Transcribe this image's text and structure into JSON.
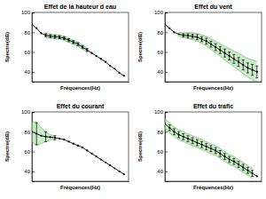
{
  "chart_data": [
    {
      "type": "line",
      "title": "Effet de la hauteur d eau",
      "x_label": "Fréquences(Hz)",
      "y_label": "Spectre(dB)",
      "tick_labels": "y",
      "color": "#000000",
      "marker": "circle",
      "xlim": [
        0,
        21
      ],
      "ylim": [
        30,
        100
      ],
      "yticks": [
        40,
        60,
        80,
        100
      ],
      "x": [
        0,
        1,
        2,
        3,
        4,
        5,
        6,
        7,
        8,
        9,
        10,
        11,
        12,
        13,
        14,
        15,
        16,
        17,
        18,
        19,
        20
      ],
      "values": [
        88,
        84,
        79,
        77,
        76,
        75.5,
        75,
        74,
        72,
        70,
        68,
        65,
        62,
        59,
        56,
        53,
        50,
        46,
        43,
        39,
        36
      ],
      "band_upper": [
        null,
        null,
        null,
        79,
        78,
        77.5,
        77,
        76,
        74,
        72,
        70,
        67,
        64,
        null,
        null,
        null,
        null,
        null,
        null,
        null,
        null
      ],
      "band_lower": [
        null,
        null,
        null,
        75,
        74,
        73.5,
        73,
        72,
        70,
        68,
        66,
        63,
        60,
        null,
        null,
        null,
        null,
        null,
        null,
        null,
        null
      ],
      "errors": [
        null,
        null,
        null,
        1.5,
        1.5,
        1.5,
        1.5,
        1.5,
        1.5,
        1.5,
        1.5,
        1.5,
        1.5,
        null,
        null,
        null,
        null,
        null,
        null,
        null,
        null
      ]
    },
    {
      "type": "line",
      "title": "Effet du vent",
      "x_label": "Fréquences(Hz)",
      "y_label": "Spectre(dB)",
      "tick_labels": "y",
      "color": "#000000",
      "marker": "circle",
      "xlim": [
        0,
        21
      ],
      "ylim": [
        30,
        100
      ],
      "yticks": [
        40,
        60,
        80,
        100
      ],
      "x": [
        0,
        1,
        2,
        3,
        4,
        5,
        6,
        7,
        8,
        9,
        10,
        11,
        12,
        13,
        14,
        15,
        16,
        17,
        18,
        19,
        20
      ],
      "values": [
        88,
        84,
        80,
        78,
        77,
        76.5,
        76,
        75,
        73,
        71,
        68,
        65,
        62,
        59,
        56,
        53,
        50,
        47,
        44,
        42,
        40
      ],
      "band_upper": [
        null,
        null,
        null,
        80,
        79.5,
        79.5,
        79.5,
        79,
        77.5,
        76,
        73.5,
        71,
        68.5,
        66,
        63.5,
        61,
        58.5,
        56,
        53.5,
        52,
        50.5
      ],
      "band_lower": [
        null,
        null,
        null,
        76,
        74.5,
        73.5,
        72.5,
        71,
        68.5,
        66,
        62.5,
        59,
        55.5,
        52,
        48.5,
        45,
        41.5,
        38,
        34.5,
        32,
        29.5
      ],
      "errors": [
        null,
        null,
        null,
        null,
        1.5,
        2,
        2,
        2.5,
        2.5,
        3,
        3,
        3.5,
        3.5,
        4,
        4,
        4.5,
        4.5,
        5,
        5,
        5.5,
        6
      ]
    },
    {
      "type": "line",
      "title": "Effet du courant",
      "x_label": "Fréquences(Hz)",
      "y_label": "Spectre(dB)",
      "tick_labels": "y",
      "color": "#000000",
      "marker": "circle",
      "xlim": [
        0,
        21
      ],
      "ylim": [
        30,
        100
      ],
      "yticks": [
        40,
        60,
        80,
        100
      ],
      "x": [
        0,
        1,
        2,
        3,
        4,
        5,
        6,
        7,
        8,
        9,
        10,
        11,
        12,
        13,
        14,
        15,
        16,
        17,
        18,
        19,
        20
      ],
      "values": [
        80,
        78,
        76,
        75,
        74.5,
        74,
        73,
        72,
        70,
        68,
        66,
        64,
        61,
        58,
        55,
        52,
        49,
        46,
        43,
        40,
        37
      ],
      "band_upper": [
        90,
        90,
        84,
        80,
        77,
        76,
        null,
        null,
        null,
        null,
        null,
        null,
        null,
        null,
        null,
        null,
        null,
        null,
        null,
        null,
        null
      ],
      "band_lower": [
        70,
        66,
        68,
        70,
        72,
        72,
        null,
        null,
        null,
        null,
        null,
        null,
        null,
        null,
        null,
        null,
        null,
        null,
        null,
        null,
        null
      ],
      "errors": [
        null,
        11,
        null,
        5,
        null,
        2,
        null,
        null,
        null,
        null,
        null,
        null,
        null,
        null,
        null,
        null,
        null,
        null,
        null,
        null,
        null
      ]
    },
    {
      "type": "line",
      "title": "Effet du trafic",
      "x_label": "Fréquences(Hz)",
      "y_label": "Spectre(dB)",
      "tick_labels": "y",
      "color": "#000000",
      "marker": "circle",
      "xlim": [
        0,
        21
      ],
      "ylim": [
        30,
        100
      ],
      "yticks": [
        40,
        60,
        80,
        100
      ],
      "x": [
        0,
        1,
        2,
        3,
        4,
        5,
        6,
        7,
        8,
        9,
        10,
        11,
        12,
        13,
        14,
        15,
        16,
        17,
        18,
        19,
        20
      ],
      "values": [
        88,
        84,
        80,
        77,
        75,
        73,
        71,
        69,
        67,
        65,
        63,
        61,
        58,
        55,
        52,
        50,
        47,
        44,
        41,
        38,
        35
      ],
      "band_upper": [
        93,
        89,
        85,
        82,
        80,
        78,
        76,
        74,
        72,
        70,
        68,
        66,
        63,
        60,
        57,
        55,
        52,
        49,
        46,
        43,
        null
      ],
      "band_lower": [
        83,
        79,
        75,
        72,
        70,
        68,
        66,
        64,
        62,
        60,
        58,
        56,
        53,
        50,
        47,
        45,
        42,
        39,
        36,
        33,
        null
      ],
      "errors": [
        null,
        3,
        3,
        3,
        3,
        3,
        3,
        3,
        3,
        3,
        3,
        3,
        3,
        3,
        3,
        3,
        3,
        3,
        3,
        3,
        null
      ]
    }
  ]
}
